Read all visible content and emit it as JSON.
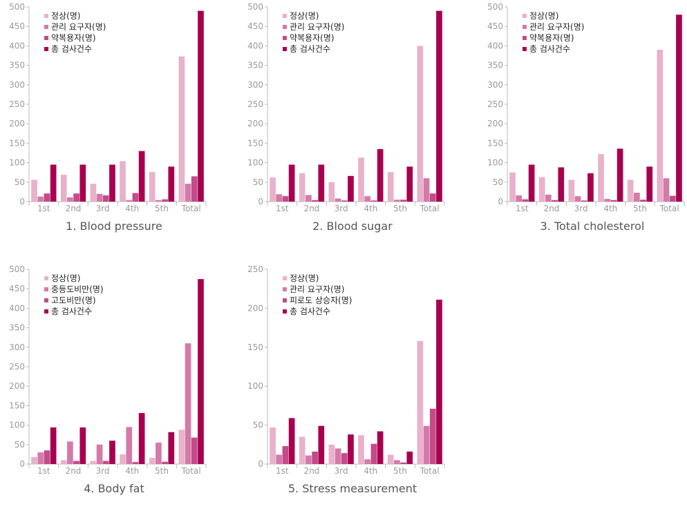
{
  "colors": [
    "#e8b2cb",
    "#d47aa8",
    "#c44a8a",
    "#a8004f"
  ],
  "chart_data": [
    {
      "type": "bar",
      "title": "1. Blood pressure",
      "categories": [
        "1st",
        "2nd",
        "3rd",
        "4th",
        "5th",
        "Total"
      ],
      "ylim": [
        0,
        500
      ],
      "yticks": [
        "0",
        "50",
        "100",
        "150",
        "200",
        "250",
        "300",
        "350",
        "400",
        "450",
        "500"
      ],
      "legend_position": "top-left",
      "series": [
        {
          "name": "정상(명)",
          "values": [
            56,
            69,
            46,
            104,
            76,
            373
          ]
        },
        {
          "name": "관리 요구자(명)",
          "values": [
            13,
            11,
            20,
            4,
            4,
            46
          ]
        },
        {
          "name": "약복용자(명)",
          "values": [
            21,
            21,
            16,
            22,
            6,
            65
          ]
        },
        {
          "name": "총 검사건수",
          "values": [
            95,
            95,
            95,
            130,
            90,
            490
          ]
        }
      ]
    },
    {
      "type": "bar",
      "title": "2. Blood sugar",
      "categories": [
        "1st",
        "2nd",
        "3rd",
        "4th",
        "5th",
        "Total"
      ],
      "ylim": [
        0,
        500
      ],
      "yticks": [
        "0",
        "50",
        "100",
        "150",
        "200",
        "250",
        "300",
        "350",
        "400",
        "450",
        "500"
      ],
      "legend_position": "top-left",
      "series": [
        {
          "name": "정상(명)",
          "values": [
            62,
            73,
            50,
            113,
            76,
            400
          ]
        },
        {
          "name": "관리 요구자(명)",
          "values": [
            19,
            17,
            8,
            14,
            5,
            60
          ]
        },
        {
          "name": "약복용자(명)",
          "values": [
            14,
            4,
            3,
            3,
            5,
            21
          ]
        },
        {
          "name": "총 검사건수",
          "values": [
            95,
            95,
            66,
            135,
            90,
            490
          ]
        }
      ]
    },
    {
      "type": "bar",
      "title": "3. Total cholesterol",
      "categories": [
        "1st",
        "2nd",
        "3rd",
        "4th",
        "5th",
        "Total"
      ],
      "ylim": [
        0,
        500
      ],
      "yticks": [
        "0",
        "50",
        "100",
        "150",
        "200",
        "250",
        "300",
        "350",
        "400",
        "450",
        "500"
      ],
      "legend_position": "top-left",
      "series": [
        {
          "name": "정상(명)",
          "values": [
            75,
            63,
            56,
            122,
            56,
            390
          ]
        },
        {
          "name": "관리 요구자(명)",
          "values": [
            16,
            18,
            14,
            7,
            23,
            60
          ]
        },
        {
          "name": "약복용자(명)",
          "values": [
            6,
            4,
            3,
            4,
            5,
            15
          ]
        },
        {
          "name": "총 검사건수",
          "values": [
            95,
            88,
            73,
            136,
            90,
            480
          ]
        }
      ]
    },
    {
      "type": "bar",
      "title": "4. Body fat",
      "categories": [
        "1st",
        "2nd",
        "3rd",
        "4th",
        "5th",
        "Total"
      ],
      "ylim": [
        0,
        500
      ],
      "yticks": [
        "0",
        "50",
        "100",
        "150",
        "200",
        "250",
        "300",
        "350",
        "400",
        "450",
        "500"
      ],
      "legend_position": "top-left",
      "series": [
        {
          "name": "정상(명)",
          "values": [
            18,
            10,
            8,
            25,
            16,
            88
          ]
        },
        {
          "name": "중등도비만(명)",
          "values": [
            30,
            58,
            50,
            95,
            55,
            310
          ]
        },
        {
          "name": "고도비만(명)",
          "values": [
            35,
            8,
            8,
            5,
            6,
            68
          ]
        },
        {
          "name": "총 검사건수",
          "values": [
            94,
            94,
            60,
            131,
            82,
            475
          ]
        }
      ]
    },
    {
      "type": "bar",
      "title": "5. Stress measurement",
      "categories": [
        "1st",
        "2nd",
        "3rd",
        "4th",
        "5th",
        "Total"
      ],
      "ylim": [
        0,
        250
      ],
      "yticks": [
        "0",
        "50",
        "100",
        "150",
        "200",
        "250"
      ],
      "legend_position": "top-left",
      "series": [
        {
          "name": "정상(명)",
          "values": [
            47,
            35,
            25,
            37,
            12,
            158
          ]
        },
        {
          "name": "관리 요구자(명)",
          "values": [
            12,
            11,
            20,
            6,
            5,
            49
          ]
        },
        {
          "name": "피로도 상승자(명)",
          "values": [
            23,
            16,
            14,
            26,
            2,
            71
          ]
        },
        {
          "name": "총 검사건수",
          "values": [
            59,
            49,
            38,
            42,
            16,
            211
          ]
        }
      ]
    }
  ]
}
